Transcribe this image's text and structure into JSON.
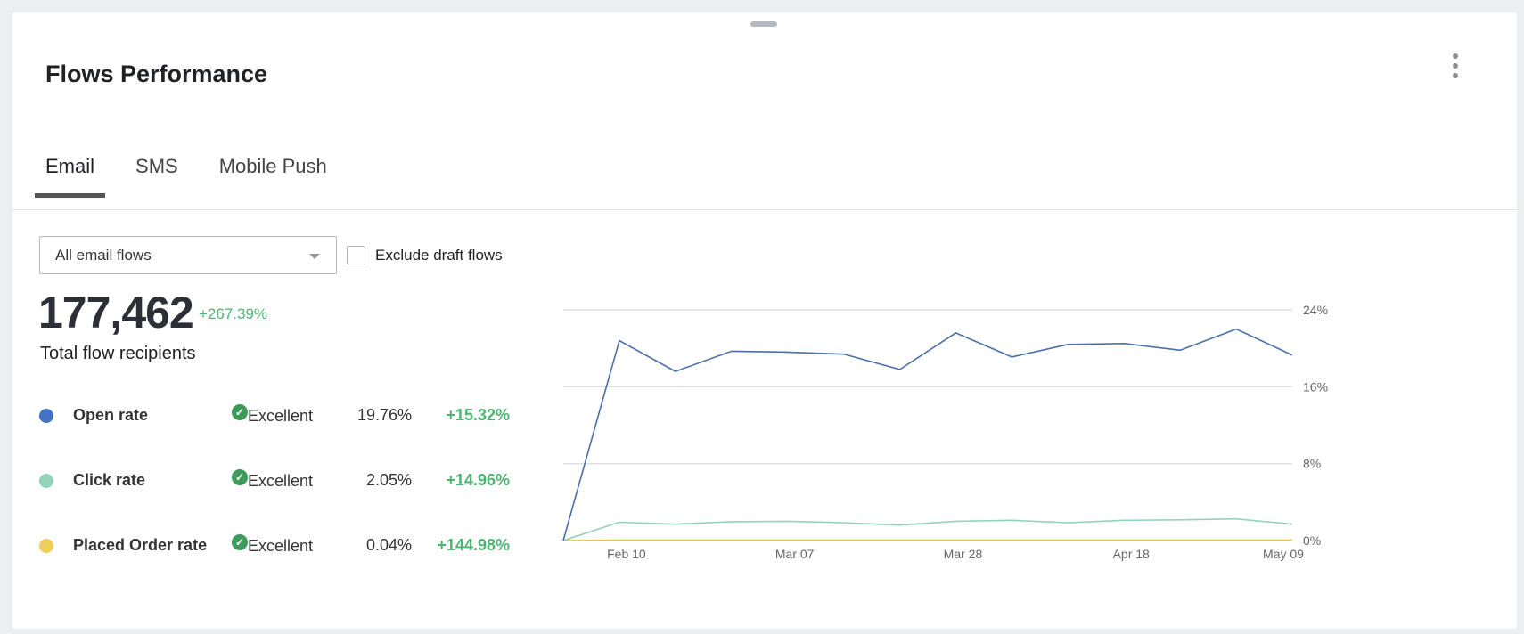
{
  "header": {
    "title": "Flows Performance",
    "menu_icon": "kebab-vertical-icon"
  },
  "tabs": [
    {
      "label": "Email",
      "active": true
    },
    {
      "label": "SMS"
    },
    {
      "label": "Mobile Push"
    }
  ],
  "filters": {
    "select_value": "All email flows",
    "exclude_label": "Exclude draft flows",
    "exclude_checked": false
  },
  "summary": {
    "total": "177,462",
    "total_change": "+267.39%",
    "total_label": "Total flow recipients"
  },
  "metrics": [
    {
      "name": "Open rate",
      "color": "#4472c4",
      "status": "Excellent",
      "value": "19.76%",
      "change": "+15.32%"
    },
    {
      "name": "Click rate",
      "color": "#93d3b9",
      "status": "Excellent",
      "value": "2.05%",
      "change": "+14.96%"
    },
    {
      "name": "Placed Order rate",
      "color": "#f0cd5a",
      "status": "Excellent",
      "value": "0.04%",
      "change": "+144.98%"
    }
  ],
  "chart_data": {
    "type": "line",
    "x_tick_labels": [
      "",
      "Feb 10",
      "",
      "",
      "Mar 07",
      "",
      "",
      "Mar 28",
      "",
      "",
      "Apr 18",
      "",
      "",
      "May 09"
    ],
    "y_ticks": [
      "0%",
      "8%",
      "16%",
      "24%"
    ],
    "ylim": [
      0,
      24
    ],
    "grid": true,
    "series": [
      {
        "metric": "Open rate",
        "color": "#4a6fa8",
        "values": [
          0,
          20.8,
          17.6,
          19.7,
          19.6,
          19.4,
          17.8,
          21.6,
          19.1,
          20.4,
          20.5,
          19.8,
          22.0,
          19.3
        ]
      },
      {
        "metric": "Click rate",
        "color": "#93d3b9",
        "values": [
          0,
          1.9,
          1.7,
          1.95,
          2.0,
          1.85,
          1.6,
          2.0,
          2.1,
          1.85,
          2.1,
          2.15,
          2.25,
          1.7
        ]
      },
      {
        "metric": "Placed Order rate",
        "color": "#e8c444",
        "values": [
          0,
          0.04,
          0.04,
          0.04,
          0.04,
          0.04,
          0.04,
          0.04,
          0.04,
          0.04,
          0.04,
          0.04,
          0.04,
          0.04
        ]
      }
    ]
  }
}
